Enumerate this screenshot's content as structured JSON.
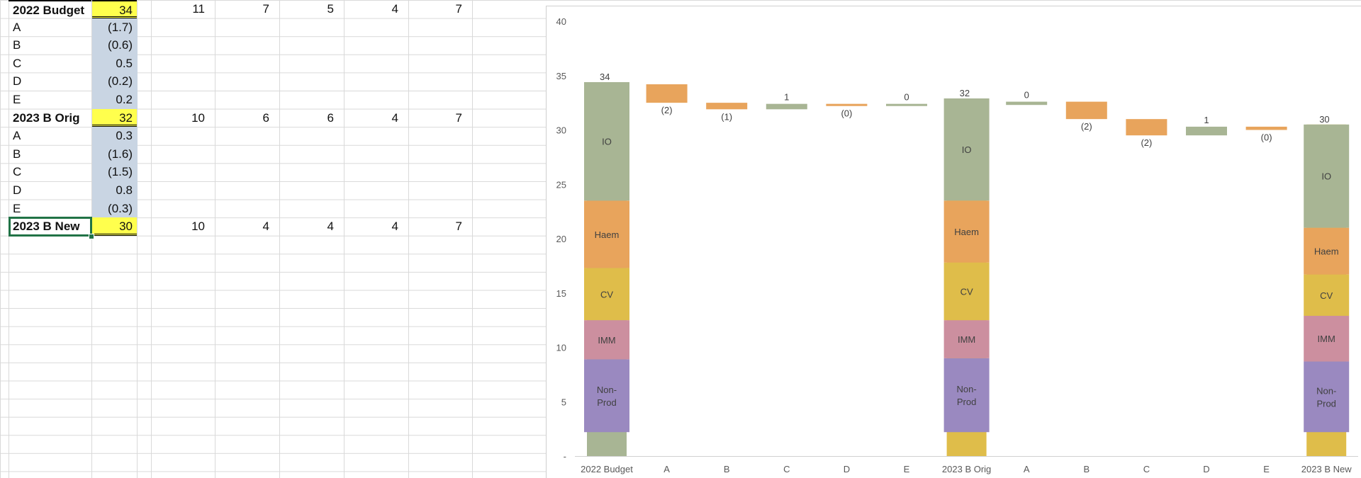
{
  "sheet": {
    "rows": [
      {
        "label": "2022 Budget",
        "value": "34",
        "bold": true,
        "yellow": true,
        "extra": [
          "11",
          "7",
          "5",
          "4",
          "7"
        ]
      },
      {
        "label": "A",
        "value": "(1.7)",
        "bold": false,
        "yellow": false,
        "extra": []
      },
      {
        "label": "B",
        "value": "(0.6)",
        "bold": false,
        "yellow": false,
        "extra": []
      },
      {
        "label": "C",
        "value": "0.5",
        "bold": false,
        "yellow": false,
        "extra": []
      },
      {
        "label": "D",
        "value": "(0.2)",
        "bold": false,
        "yellow": false,
        "extra": []
      },
      {
        "label": "E",
        "value": "0.2",
        "bold": false,
        "yellow": false,
        "extra": []
      },
      {
        "label": "2023 B Orig",
        "value": "32",
        "bold": true,
        "yellow": true,
        "extra": [
          "10",
          "6",
          "6",
          "4",
          "7"
        ]
      },
      {
        "label": "A",
        "value": "0.3",
        "bold": false,
        "yellow": false,
        "extra": []
      },
      {
        "label": "B",
        "value": "(1.6)",
        "bold": false,
        "yellow": false,
        "extra": []
      },
      {
        "label": "C",
        "value": "(1.5)",
        "bold": false,
        "yellow": false,
        "extra": []
      },
      {
        "label": "D",
        "value": "0.8",
        "bold": false,
        "yellow": false,
        "extra": []
      },
      {
        "label": "E",
        "value": "(0.3)",
        "bold": false,
        "yellow": false,
        "extra": []
      },
      {
        "label": "2023 B New",
        "value": "30",
        "bold": true,
        "yellow": true,
        "extra": [
          "10",
          "4",
          "4",
          "4",
          "7"
        ]
      }
    ]
  },
  "colors": {
    "IO": "#a8b594",
    "Haem": "#e8a45c",
    "CV": "#dfbd4a",
    "IMM": "#cc8f9f",
    "Non-Prod": "#9a89c0",
    "neg": "#e8a45c",
    "pos": "#a8b594",
    "cell_blue": "#c9d5e3",
    "cell_yellow": "#ffff4d",
    "selection": "#217346"
  },
  "chart_data": {
    "type": "bar",
    "subtype": "waterfall-stacked",
    "categories": [
      "2022 Budget",
      "A",
      "B",
      "C",
      "D",
      "E",
      "2023 B Orig",
      "A",
      "B",
      "C",
      "D",
      "E",
      "2023 B New"
    ],
    "ylim": [
      0,
      40
    ],
    "yticks": [
      "-",
      "5",
      "10",
      "15",
      "20",
      "25",
      "30",
      "35",
      "40"
    ],
    "grid": false,
    "totals": [
      {
        "category_index": 0,
        "label": "34",
        "base": 34,
        "segments": [
          {
            "name": "Non-Prod",
            "from": 2.2,
            "to": 8.9
          },
          {
            "name": "IMM",
            "from": 8.9,
            "to": 12.5
          },
          {
            "name": "CV",
            "from": 12.5,
            "to": 17.3
          },
          {
            "name": "Haem",
            "from": 17.3,
            "to": 23.5
          },
          {
            "name": "IO",
            "from": 23.5,
            "to": 34.4
          }
        ]
      },
      {
        "category_index": 6,
        "label": "32",
        "base": 32.3,
        "segments": [
          {
            "name": "Non-Prod",
            "from": 2.2,
            "to": 9.0
          },
          {
            "name": "IMM",
            "from": 9.0,
            "to": 12.5
          },
          {
            "name": "CV",
            "from": 12.5,
            "to": 17.8
          },
          {
            "name": "Haem",
            "from": 17.8,
            "to": 23.5
          },
          {
            "name": "IO",
            "from": 23.5,
            "to": 32.9
          }
        ]
      },
      {
        "category_index": 12,
        "label": "30",
        "base": 30.5,
        "segments": [
          {
            "name": "Non-Prod",
            "from": 2.2,
            "to": 8.7
          },
          {
            "name": "IMM",
            "from": 8.7,
            "to": 12.9
          },
          {
            "name": "CV",
            "from": 12.9,
            "to": 16.7
          },
          {
            "name": "Haem",
            "from": 16.7,
            "to": 21.0
          },
          {
            "name": "IO",
            "from": 21.0,
            "to": 30.5
          }
        ]
      }
    ],
    "steps": [
      {
        "category_index": 1,
        "from": 34.2,
        "to": 32.5,
        "label": "(2)",
        "sign": "neg"
      },
      {
        "category_index": 2,
        "from": 32.5,
        "to": 31.9,
        "label": "(1)",
        "sign": "neg"
      },
      {
        "category_index": 3,
        "from": 31.9,
        "to": 32.4,
        "label": "1",
        "sign": "pos"
      },
      {
        "category_index": 4,
        "from": 32.4,
        "to": 32.2,
        "label": "(0)",
        "sign": "neg"
      },
      {
        "category_index": 5,
        "from": 32.2,
        "to": 32.4,
        "label": "0",
        "sign": "pos"
      },
      {
        "category_index": 7,
        "from": 32.3,
        "to": 32.6,
        "label": "0",
        "sign": "pos"
      },
      {
        "category_index": 8,
        "from": 32.6,
        "to": 31.0,
        "label": "(2)",
        "sign": "neg"
      },
      {
        "category_index": 9,
        "from": 31.0,
        "to": 29.5,
        "label": "(2)",
        "sign": "neg"
      },
      {
        "category_index": 10,
        "from": 29.5,
        "to": 30.3,
        "label": "1",
        "sign": "pos"
      },
      {
        "category_index": 11,
        "from": 30.3,
        "to": 30.0,
        "label": "(0)",
        "sign": "neg"
      }
    ]
  }
}
